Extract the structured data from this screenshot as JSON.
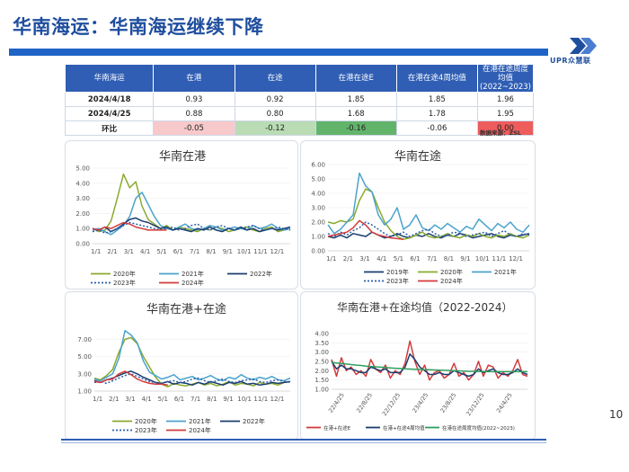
{
  "header": {
    "title": "华南海运：华南海运继续下降",
    "logo_text": "UPR众慧联"
  },
  "table": {
    "headers": [
      "华南海运",
      "在港",
      "在途",
      "在港在途E",
      "在港在途4周均值",
      "在港在途周度均值 (2022~2023)"
    ],
    "rows": [
      {
        "label": "2024/4/18",
        "values": [
          "0.93",
          "0.92",
          "1.85",
          "1.85",
          "1.96"
        ]
      },
      {
        "label": "2024/4/25",
        "values": [
          "0.88",
          "0.80",
          "1.68",
          "1.78",
          "1.95"
        ]
      },
      {
        "label": "环比",
        "values": [
          "-0.05",
          "-0.12",
          "-0.16",
          "-0.06",
          "0.00"
        ]
      }
    ],
    "change_colors": [
      "#f7c9cb",
      "#b9dcb4",
      "#63b46b",
      "#ffffff",
      "#ee5c5c"
    ],
    "source": "数据来源：ZSL"
  },
  "page_number": "10",
  "chart_data": [
    {
      "type": "line",
      "title": "华南在港",
      "x_tick_labels": [
        "1/1",
        "2/1",
        "3/1",
        "4/1",
        "5/1",
        "6/1",
        "7/1",
        "8/1",
        "9/1",
        "10/1",
        "11/1",
        "12/1"
      ],
      "y_ticks": [
        "0.00",
        "1.00",
        "2.00",
        "3.00",
        "4.00",
        "5.00"
      ],
      "ylim": [
        0,
        5
      ],
      "series": [
        {
          "name": "2020年",
          "color": "#8aaa2e",
          "dash": "",
          "values": [
            1.0,
            0.8,
            0.9,
            1.5,
            3.0,
            4.6,
            3.7,
            4.1,
            2.5,
            1.6,
            1.3,
            1.0,
            1.2,
            0.9,
            1.1,
            1.0,
            0.9,
            0.8,
            1.0,
            0.9,
            1.1,
            1.0,
            0.8,
            0.9,
            1.0,
            1.1,
            0.9,
            0.8,
            1.0,
            1.1,
            0.8,
            0.9,
            1.0
          ]
        },
        {
          "name": "2021年",
          "color": "#4ba3cc",
          "dash": "",
          "values": [
            0.9,
            1.0,
            0.8,
            0.6,
            0.9,
            1.2,
            1.8,
            3.0,
            3.4,
            2.6,
            1.8,
            1.2,
            1.0,
            0.9,
            1.1,
            1.3,
            1.0,
            0.9,
            1.0,
            1.2,
            1.1,
            0.9,
            1.0,
            1.1,
            1.0,
            0.9,
            1.2,
            1.0,
            1.1,
            1.3,
            1.0,
            0.9,
            1.0
          ]
        },
        {
          "name": "2022年",
          "color": "#1b3d6e",
          "dash": "",
          "values": [
            1.0,
            0.9,
            1.1,
            0.8,
            1.0,
            1.3,
            1.6,
            1.7,
            1.5,
            1.4,
            1.2,
            1.0,
            1.1,
            0.9,
            1.0,
            0.9,
            0.8,
            1.0,
            0.9,
            1.1,
            0.9,
            0.8,
            1.0,
            0.9,
            1.1,
            0.9,
            1.0,
            0.8,
            0.9,
            1.0,
            0.9,
            1.0,
            1.1
          ]
        },
        {
          "name": "2023年",
          "color": "#2b5fa8",
          "dash": "2,2",
          "values": [
            0.8,
            0.9,
            0.7,
            0.8,
            1.0,
            1.2,
            1.4,
            1.3,
            1.2,
            1.1,
            1.0,
            0.9,
            1.0,
            1.1,
            0.9,
            1.0,
            1.2,
            1.3,
            1.0,
            0.9,
            1.1,
            1.2,
            1.0,
            0.9,
            1.0,
            1.1,
            1.2,
            1.0,
            0.9,
            1.0,
            1.1,
            1.0,
            0.9
          ]
        },
        {
          "name": "2024年",
          "color": "#d33b3b",
          "dash": "",
          "values": [
            1.0,
            0.9,
            1.1,
            1.0,
            1.2,
            1.4,
            1.3,
            1.1,
            1.0,
            0.9,
            0.9,
            0.9,
            0.9
          ]
        }
      ]
    },
    {
      "type": "line",
      "title": "华南在途",
      "x_tick_labels": [
        "1/1",
        "2/1",
        "3/1",
        "4/1",
        "5/1",
        "6/1",
        "7/1",
        "8/1",
        "9/1",
        "10/1",
        "11/1",
        "12/1"
      ],
      "y_ticks": [
        "0.00",
        "1.00",
        "2.00",
        "3.00",
        "4.00",
        "5.00",
        "6.00"
      ],
      "ylim": [
        0,
        6
      ],
      "series": [
        {
          "name": "2019年",
          "color": "#1b3d6e",
          "dash": "",
          "values": [
            1.0,
            0.9,
            1.1,
            0.9,
            1.2,
            1.1,
            1.0,
            1.3,
            1.1,
            0.9,
            1.0,
            1.2,
            1.0,
            0.9,
            1.1,
            1.0,
            1.2,
            1.0,
            0.9,
            1.1,
            1.0,
            1.2,
            1.1,
            0.9,
            1.0,
            1.1,
            1.2,
            1.0,
            0.9,
            1.1,
            1.0,
            1.1,
            1.2
          ]
        },
        {
          "name": "2020年",
          "color": "#8aaa2e",
          "dash": "",
          "values": [
            2.0,
            1.9,
            2.1,
            2.0,
            2.2,
            3.5,
            4.3,
            4.1,
            3.0,
            2.0,
            1.4,
            1.0,
            0.8,
            0.9,
            1.1,
            1.3,
            1.0,
            0.9,
            1.0,
            1.2,
            1.0,
            0.9,
            1.1,
            1.0,
            1.2,
            1.0,
            0.9,
            1.1,
            1.0,
            1.2,
            1.0,
            0.9,
            1.1
          ]
        },
        {
          "name": "2021年",
          "color": "#4ba3cc",
          "dash": "",
          "values": [
            1.8,
            1.2,
            1.5,
            2.0,
            2.5,
            5.4,
            4.5,
            4.1,
            2.5,
            1.8,
            2.2,
            3.0,
            1.5,
            1.8,
            2.5,
            1.6,
            1.4,
            1.8,
            1.5,
            1.9,
            1.6,
            1.3,
            1.7,
            1.5,
            2.2,
            1.8,
            1.4,
            1.9,
            1.6,
            2.0,
            1.5,
            1.3,
            1.8
          ]
        },
        {
          "name": "2023年",
          "color": "#2b5fa8",
          "dash": "2,2",
          "values": [
            1.2,
            1.0,
            1.3,
            1.1,
            1.4,
            1.6,
            2.0,
            1.8,
            1.5,
            1.2,
            1.0,
            1.1,
            1.3,
            1.0,
            1.2,
            1.4,
            1.5,
            1.2,
            1.0,
            1.1,
            1.3,
            1.2,
            1.0,
            1.1,
            1.2,
            1.3,
            1.0,
            1.2,
            1.4,
            1.1,
            1.0,
            1.2,
            1.1
          ]
        },
        {
          "name": "2024年",
          "color": "#d33b3b",
          "dash": "",
          "values": [
            1.0,
            1.1,
            1.2,
            1.3,
            1.6,
            2.1,
            1.8,
            1.3,
            1.1,
            1.0,
            0.9,
            0.85,
            0.8
          ]
        }
      ]
    },
    {
      "type": "line",
      "title": "华南在港+在途",
      "x_tick_labels": [
        "1/1",
        "2/1",
        "3/1",
        "4/1",
        "5/1",
        "6/1",
        "7/1",
        "8/1",
        "9/1",
        "10/1",
        "11/1",
        "12/1"
      ],
      "y_ticks": [
        "1.00",
        "3.00",
        "5.00",
        "7.00"
      ],
      "ylim": [
        1,
        8.5
      ],
      "series": [
        {
          "name": "2020年",
          "color": "#8aaa2e",
          "dash": "",
          "values": [
            2.5,
            2.3,
            2.8,
            3.5,
            5.5,
            7.0,
            7.2,
            6.5,
            5.0,
            3.8,
            2.6,
            1.8,
            1.5,
            1.9,
            1.7,
            1.6,
            1.8,
            2.0,
            1.7,
            1.9,
            1.6,
            1.8,
            2.1,
            1.7,
            1.9,
            1.8,
            1.6,
            2.0,
            1.8,
            1.9,
            1.7,
            2.0,
            2.1
          ]
        },
        {
          "name": "2021年",
          "color": "#4ba3cc",
          "dash": "",
          "values": [
            2.4,
            2.2,
            2.6,
            3.0,
            4.8,
            8.0,
            7.5,
            6.6,
            4.5,
            3.2,
            2.8,
            2.4,
            2.6,
            2.9,
            2.3,
            2.5,
            2.7,
            2.3,
            2.5,
            2.8,
            2.4,
            2.2,
            2.6,
            2.4,
            2.9,
            2.5,
            2.3,
            2.6,
            2.4,
            2.7,
            2.3,
            2.2,
            2.5
          ]
        },
        {
          "name": "2022年",
          "color": "#1b3d6e",
          "dash": "",
          "values": [
            2.2,
            2.0,
            2.3,
            2.5,
            2.8,
            3.1,
            3.3,
            3.0,
            2.6,
            2.3,
            2.0,
            1.9,
            2.1,
            1.8,
            2.0,
            1.9,
            1.7,
            2.0,
            1.8,
            2.1,
            1.9,
            1.7,
            2.0,
            1.9,
            2.1,
            1.8,
            1.9,
            1.7,
            1.8,
            2.0,
            1.9,
            2.0,
            2.1
          ]
        },
        {
          "name": "2023年",
          "color": "#2b5fa8",
          "dash": "2,2",
          "values": [
            2.0,
            2.1,
            1.9,
            2.2,
            2.5,
            2.8,
            3.0,
            2.7,
            2.4,
            2.1,
            2.0,
            1.9,
            2.1,
            2.2,
            2.0,
            2.1,
            2.4,
            2.5,
            2.2,
            2.0,
            2.2,
            2.4,
            2.1,
            2.0,
            2.2,
            2.3,
            2.4,
            2.1,
            2.0,
            2.2,
            2.3,
            2.1,
            2.0
          ]
        },
        {
          "name": "2024年",
          "color": "#d33b3b",
          "dash": "",
          "values": [
            2.1,
            2.0,
            2.3,
            2.4,
            3.0,
            3.3,
            2.9,
            2.4,
            2.1,
            1.9,
            1.8,
            1.8,
            1.7
          ]
        }
      ]
    },
    {
      "type": "line",
      "title": "华南在港+在途均值（2022-2024）",
      "x_tick_labels": [
        "22/4/25",
        "22/8/25",
        "22/12/25",
        "23/4/25",
        "23/8/25",
        "23/12/25",
        "24/4/25"
      ],
      "y_ticks": [
        "1.00",
        "1.50",
        "2.00",
        "2.50",
        "3.00",
        "3.50",
        "4.00"
      ],
      "ylim": [
        1,
        4
      ],
      "series": [
        {
          "name": "在港+在途E",
          "color": "#d33b3b",
          "dash": "",
          "values": [
            2.6,
            1.7,
            2.7,
            2.0,
            2.2,
            1.8,
            2.0,
            1.7,
            2.6,
            2.1,
            1.9,
            2.3,
            1.6,
            2.0,
            1.8,
            2.4,
            3.6,
            2.5,
            1.8,
            2.3,
            1.5,
            1.9,
            2.0,
            1.6,
            1.8,
            2.4,
            1.7,
            1.9,
            1.5,
            1.8,
            2.5,
            1.7,
            2.3,
            2.2,
            1.6,
            1.9,
            1.7,
            2.0,
            2.6,
            1.8,
            1.7
          ]
        },
        {
          "name": "在港+在途4周均值",
          "color": "#1b3d6e",
          "dash": "",
          "values": [
            2.5,
            2.1,
            2.3,
            2.1,
            2.1,
            2.0,
            1.9,
            1.9,
            2.2,
            2.1,
            2.0,
            2.1,
            1.9,
            1.9,
            1.9,
            2.2,
            2.9,
            2.6,
            2.2,
            2.0,
            1.8,
            1.8,
            1.9,
            1.8,
            1.8,
            2.0,
            1.9,
            1.8,
            1.7,
            1.8,
            2.1,
            1.9,
            2.0,
            2.1,
            1.9,
            1.8,
            1.8,
            1.9,
            2.1,
            1.9,
            1.8
          ]
        },
        {
          "name": "在港在途周度均值(2022~2023)",
          "color": "#2e9e5e",
          "dash": "",
          "values": [
            2.45,
            2.42,
            2.39,
            2.36,
            2.33,
            2.3,
            2.28,
            2.25,
            2.23,
            2.21,
            2.19,
            2.17,
            2.15,
            2.13,
            2.12,
            2.1,
            2.09,
            2.08,
            2.07,
            2.06,
            2.05,
            2.04,
            2.03,
            2.02,
            2.01,
            2.0,
            1.99,
            1.98,
            1.97,
            1.97,
            1.96,
            1.96,
            1.95,
            1.95,
            1.95,
            1.95,
            1.95,
            1.95,
            1.95,
            1.95,
            1.95
          ]
        }
      ]
    }
  ]
}
